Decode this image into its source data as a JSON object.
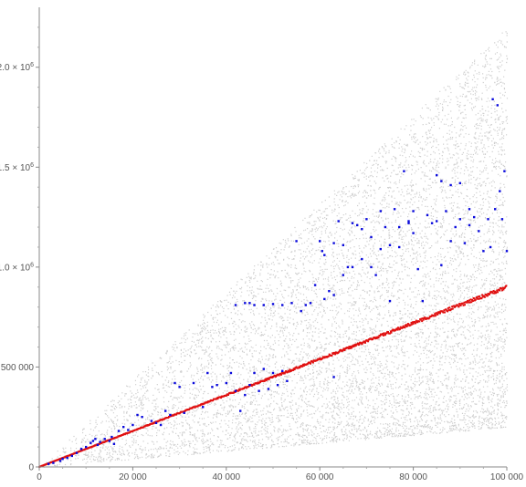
{
  "chart_data": {
    "type": "scatter",
    "title": "",
    "xlabel": "",
    "ylabel": "",
    "xlim": [
      0,
      100000
    ],
    "ylim": [
      0,
      2300000
    ],
    "grid": false,
    "x_ticks": [
      {
        "value": 0,
        "label": "0"
      },
      {
        "value": 20000,
        "label": "20 000"
      },
      {
        "value": 40000,
        "label": "40 000"
      },
      {
        "value": 60000,
        "label": "60 000"
      },
      {
        "value": 80000,
        "label": "80 000"
      },
      {
        "value": 100000,
        "label": "100 000"
      }
    ],
    "y_ticks": [
      {
        "value": 0,
        "label": "0"
      },
      {
        "value": 500000,
        "label": "500 000"
      },
      {
        "value": 1000000,
        "mantissa": "1.0",
        "exponent": "6",
        "label": "1.0 × 10^6"
      },
      {
        "value": 1500000,
        "mantissa": "1.5",
        "exponent": "6",
        "label": "1.5 × 10^6"
      },
      {
        "value": 2000000,
        "mantissa": "2.0",
        "exponent": "6",
        "label": "2.0 × 10^6"
      }
    ],
    "series": [
      {
        "role": "background-cloud",
        "color": "#cfcfcf",
        "description_values": "dense scatter between y ≈ 2x (lower edge) and y ≈ 22x (upper edge)",
        "lower_slope": 2.0,
        "upper_slope": 22.0,
        "approx_points": 9000
      },
      {
        "role": "line-points",
        "color": "#e01010",
        "slope": 9.0,
        "x_range": [
          0,
          100000
        ],
        "approx_points": 700
      },
      {
        "role": "highlighted-points",
        "color": "#0a0adc",
        "points": [
          [
            2000,
            15000
          ],
          [
            3000,
            20000
          ],
          [
            4500,
            30000
          ],
          [
            5000,
            40000
          ],
          [
            6000,
            45000
          ],
          [
            7000,
            55000
          ],
          [
            8000,
            70000
          ],
          [
            9000,
            90000
          ],
          [
            10000,
            100000
          ],
          [
            11000,
            120000
          ],
          [
            11500,
            130000
          ],
          [
            12000,
            140000
          ],
          [
            12500,
            110000
          ],
          [
            13000,
            125000
          ],
          [
            14000,
            140000
          ],
          [
            15000,
            130000
          ],
          [
            15500,
            150000
          ],
          [
            16000,
            115000
          ],
          [
            17000,
            180000
          ],
          [
            18000,
            200000
          ],
          [
            19000,
            185000
          ],
          [
            20000,
            210000
          ],
          [
            21000,
            260000
          ],
          [
            22000,
            250000
          ],
          [
            24000,
            230000
          ],
          [
            25000,
            220000
          ],
          [
            26000,
            210000
          ],
          [
            27000,
            280000
          ],
          [
            28000,
            260000
          ],
          [
            29000,
            420000
          ],
          [
            30000,
            400000
          ],
          [
            31000,
            270000
          ],
          [
            33000,
            420000
          ],
          [
            35000,
            300000
          ],
          [
            36000,
            470000
          ],
          [
            37000,
            400000
          ],
          [
            38000,
            410000
          ],
          [
            40000,
            420000
          ],
          [
            41000,
            470000
          ],
          [
            42000,
            380000
          ],
          [
            43000,
            280000
          ],
          [
            44000,
            360000
          ],
          [
            45000,
            410000
          ],
          [
            46000,
            470000
          ],
          [
            47000,
            380000
          ],
          [
            48000,
            490000
          ],
          [
            49000,
            390000
          ],
          [
            50000,
            470000
          ],
          [
            51000,
            410000
          ],
          [
            52000,
            480000
          ],
          [
            53000,
            430000
          ],
          [
            42000,
            810000
          ],
          [
            44000,
            820000
          ],
          [
            45000,
            820000
          ],
          [
            46000,
            810000
          ],
          [
            48000,
            810000
          ],
          [
            50000,
            815000
          ],
          [
            52000,
            810000
          ],
          [
            54000,
            820000
          ],
          [
            55000,
            1130000
          ],
          [
            56000,
            780000
          ],
          [
            57000,
            810000
          ],
          [
            58000,
            820000
          ],
          [
            59000,
            910000
          ],
          [
            60000,
            1130000
          ],
          [
            60500,
            1080000
          ],
          [
            61000,
            840000
          ],
          [
            62000,
            880000
          ],
          [
            63000,
            450000
          ],
          [
            63000,
            860000
          ],
          [
            64000,
            1230000
          ],
          [
            65000,
            1110000
          ],
          [
            66000,
            1000000
          ],
          [
            67000,
            1220000
          ],
          [
            68000,
            1210000
          ],
          [
            69000,
            1190000
          ],
          [
            70000,
            1240000
          ],
          [
            71000,
            1150000
          ],
          [
            72000,
            960000
          ],
          [
            73000,
            1090000
          ],
          [
            74000,
            1200000
          ],
          [
            75000,
            830000
          ],
          [
            76000,
            1290000
          ],
          [
            77000,
            1100000
          ],
          [
            78000,
            1480000
          ],
          [
            79000,
            1220000
          ],
          [
            80000,
            1170000
          ],
          [
            80000,
            1280000
          ],
          [
            81000,
            990000
          ],
          [
            82000,
            830000
          ],
          [
            83000,
            1260000
          ],
          [
            84000,
            1220000
          ],
          [
            85000,
            1230000
          ],
          [
            86000,
            1010000
          ],
          [
            87000,
            1280000
          ],
          [
            88000,
            1130000
          ],
          [
            89000,
            1200000
          ],
          [
            90000,
            1420000
          ],
          [
            91000,
            1120000
          ],
          [
            92000,
            1210000
          ],
          [
            93000,
            1250000
          ],
          [
            94000,
            1180000
          ],
          [
            95000,
            1080000
          ],
          [
            96000,
            1240000
          ],
          [
            97000,
            1840000
          ],
          [
            98000,
            1810000
          ],
          [
            99000,
            1240000
          ],
          [
            100000,
            1080000
          ],
          [
            99500,
            1480000
          ],
          [
            98500,
            1380000
          ],
          [
            97500,
            1290000
          ],
          [
            96500,
            1100000
          ],
          [
            85000,
            1460000
          ],
          [
            86000,
            1430000
          ],
          [
            88000,
            1410000
          ],
          [
            90000,
            1240000
          ],
          [
            92000,
            1290000
          ],
          [
            61000,
            1060000
          ],
          [
            63000,
            1120000
          ],
          [
            65000,
            960000
          ],
          [
            67000,
            1000000
          ],
          [
            69000,
            1040000
          ],
          [
            71000,
            1000000
          ],
          [
            73000,
            1280000
          ],
          [
            75000,
            1110000
          ],
          [
            77000,
            1200000
          ],
          [
            79000,
            1230000
          ]
        ]
      }
    ]
  }
}
